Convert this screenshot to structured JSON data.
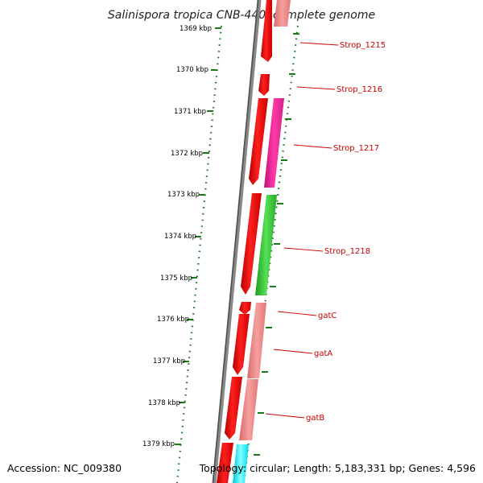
{
  "title": "Salinispora tropica CNB-440, complete genome",
  "accession": "Accession: NC_009380",
  "topology": "Topology: circular; Length: 5,183,331 bp; Genes: 4,596",
  "colors": {
    "tick": "#1a7a1a",
    "backbone": "#707070",
    "gene_red": "#ff0000",
    "gene_pink": "#f08080",
    "gene_magenta": "#ff1493",
    "gene_green": "#33cc33",
    "gene_cyan": "#00ffff",
    "label": "#cc0000"
  },
  "kbp_ticks": [
    "1369 kbp",
    "1370 kbp",
    "1371 kbp",
    "1372 kbp",
    "1373 kbp",
    "1374 kbp",
    "1375 kbp",
    "1376 kbp",
    "1377 kbp",
    "1378 kbp",
    "1379 kbp"
  ],
  "gene_labels": [
    "Strop_1215",
    "Strop_1216",
    "Strop_1217",
    "Strop_1218",
    "gatC",
    "gatA",
    "gatB"
  ]
}
